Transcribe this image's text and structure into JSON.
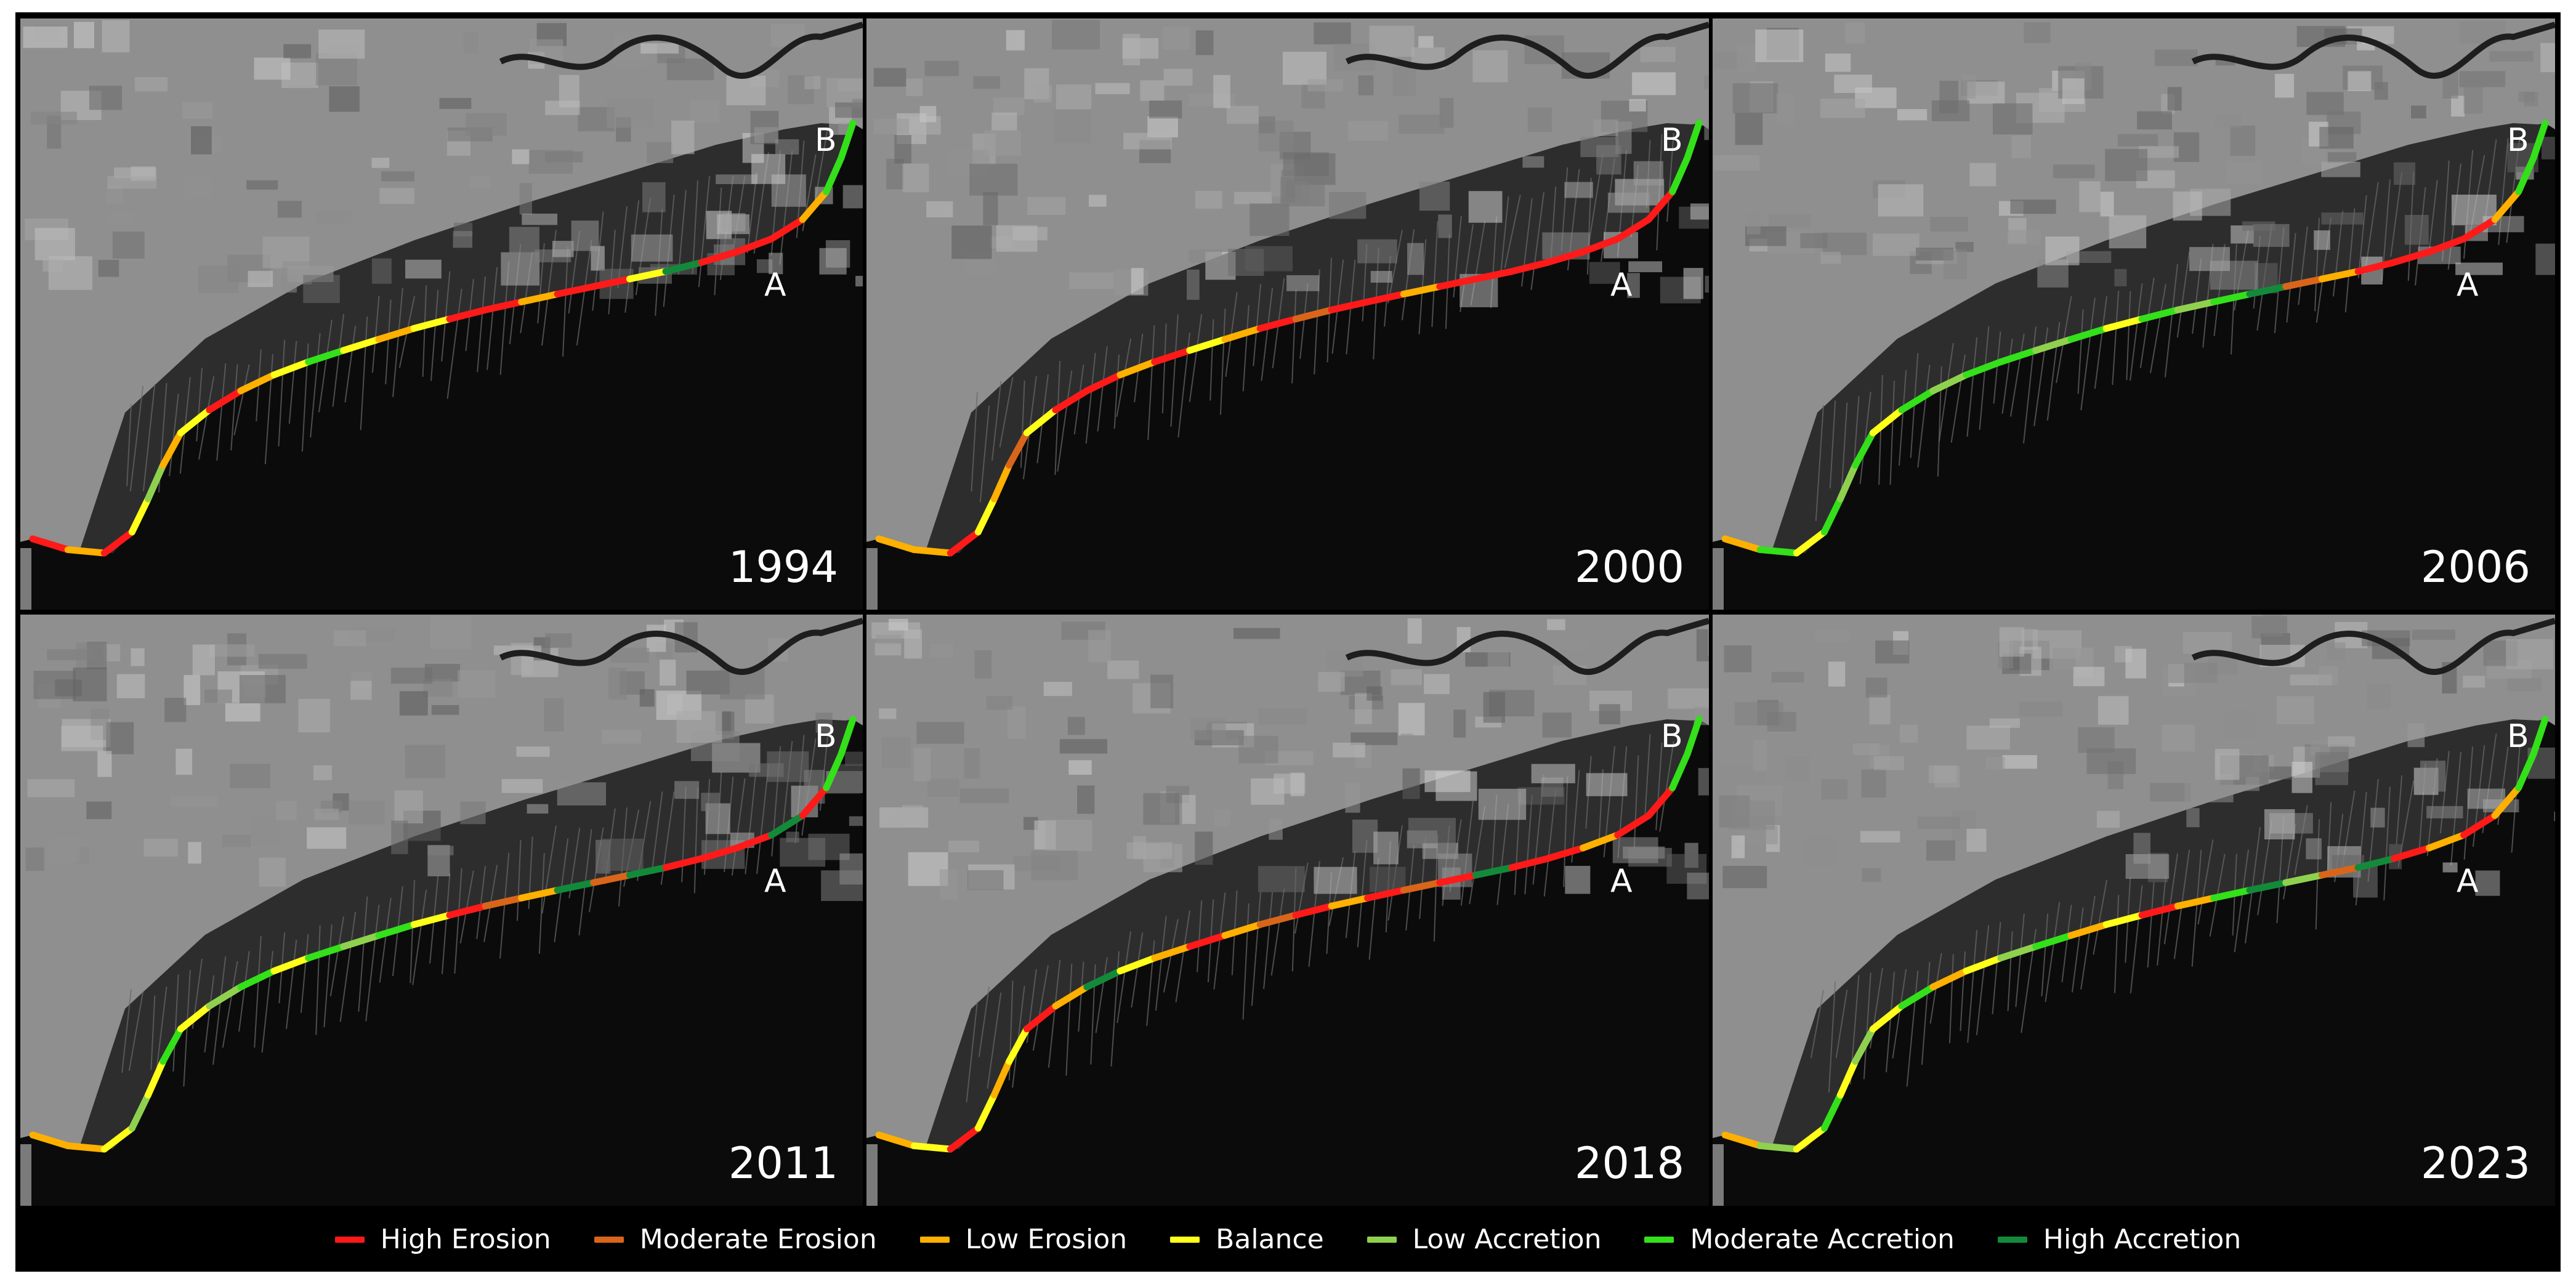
{
  "panels": [
    {
      "year": "1994",
      "label_a": "A",
      "label_b": "B",
      "coast_classes": [
        "high_erosion",
        "low_erosion",
        "high_erosion",
        "balance",
        "low_accretion",
        "low_erosion",
        "balance",
        "high_erosion",
        "low_erosion",
        "balance",
        "moderate_accretion",
        "balance",
        "low_erosion",
        "balance",
        "high_erosion",
        "high_erosion",
        "low_erosion",
        "high_erosion",
        "high_erosion",
        "balance",
        "high_accretion",
        "high_erosion",
        "high_erosion",
        "high_erosion",
        "low_erosion",
        "moderate_accretion",
        "moderate_accretion"
      ]
    },
    {
      "year": "2000",
      "label_a": "A",
      "label_b": "B",
      "coast_classes": [
        "low_erosion",
        "low_erosion",
        "high_erosion",
        "balance",
        "low_erosion",
        "moderate_erosion",
        "balance",
        "high_erosion",
        "high_erosion",
        "low_erosion",
        "high_erosion",
        "balance",
        "low_erosion",
        "high_erosion",
        "moderate_erosion",
        "high_erosion",
        "high_erosion",
        "low_erosion",
        "high_erosion",
        "high_erosion",
        "high_erosion",
        "high_erosion",
        "high_erosion",
        "high_erosion",
        "high_erosion",
        "moderate_accretion",
        "moderate_accretion"
      ]
    },
    {
      "year": "2006",
      "label_a": "A",
      "label_b": "B",
      "coast_classes": [
        "low_erosion",
        "moderate_accretion",
        "balance",
        "moderate_accretion",
        "low_accretion",
        "moderate_accretion",
        "balance",
        "moderate_accretion",
        "low_accretion",
        "moderate_accretion",
        "moderate_accretion",
        "low_accretion",
        "moderate_accretion",
        "balance",
        "moderate_accretion",
        "low_accretion",
        "moderate_accretion",
        "high_accretion",
        "moderate_erosion",
        "low_erosion",
        "high_erosion",
        "high_erosion",
        "high_erosion",
        "high_erosion",
        "low_erosion",
        "moderate_accretion",
        "moderate_accretion"
      ]
    },
    {
      "year": "2011",
      "label_a": "A",
      "label_b": "B",
      "coast_classes": [
        "low_erosion",
        "low_erosion",
        "balance",
        "low_accretion",
        "balance",
        "moderate_accretion",
        "balance",
        "low_accretion",
        "moderate_accretion",
        "balance",
        "moderate_accretion",
        "low_accretion",
        "moderate_accretion",
        "balance",
        "high_erosion",
        "moderate_erosion",
        "low_erosion",
        "high_accretion",
        "moderate_erosion",
        "high_accretion",
        "high_erosion",
        "high_erosion",
        "high_erosion",
        "high_accretion",
        "high_erosion",
        "moderate_accretion",
        "moderate_accretion"
      ]
    },
    {
      "year": "2018",
      "label_a": "A",
      "label_b": "B",
      "coast_classes": [
        "low_erosion",
        "balance",
        "high_erosion",
        "balance",
        "low_erosion",
        "balance",
        "high_erosion",
        "low_erosion",
        "high_accretion",
        "balance",
        "low_erosion",
        "high_erosion",
        "low_erosion",
        "moderate_erosion",
        "high_erosion",
        "low_erosion",
        "high_erosion",
        "moderate_erosion",
        "high_erosion",
        "high_accretion",
        "high_erosion",
        "high_erosion",
        "low_erosion",
        "high_erosion",
        "high_erosion",
        "moderate_accretion",
        "moderate_accretion"
      ]
    },
    {
      "year": "2023",
      "label_a": "A",
      "label_b": "B",
      "coast_classes": [
        "low_erosion",
        "low_accretion",
        "balance",
        "moderate_accretion",
        "balance",
        "low_accretion",
        "balance",
        "moderate_accretion",
        "low_erosion",
        "balance",
        "low_accretion",
        "moderate_accretion",
        "low_erosion",
        "balance",
        "high_erosion",
        "low_erosion",
        "moderate_accretion",
        "high_accretion",
        "low_accretion",
        "moderate_erosion",
        "high_accretion",
        "high_erosion",
        "low_erosion",
        "high_erosion",
        "low_erosion",
        "moderate_accretion",
        "moderate_accretion"
      ]
    }
  ],
  "legend": {
    "items": [
      {
        "key": "high_erosion",
        "label": "High Erosion",
        "color": "#ff1a1a"
      },
      {
        "key": "moderate_erosion",
        "label": "Moderate Erosion",
        "color": "#d9651a"
      },
      {
        "key": "low_erosion",
        "label": "Low Erosion",
        "color": "#ffb000"
      },
      {
        "key": "balance",
        "label": "Balance",
        "color": "#ffff1a"
      },
      {
        "key": "low_accretion",
        "label": "Low Accretion",
        "color": "#8fd14f"
      },
      {
        "key": "moderate_accretion",
        "label": "Moderate Accretion",
        "color": "#33e01a"
      },
      {
        "key": "high_accretion",
        "label": "High Accretion",
        "color": "#138a3a"
      }
    ]
  }
}
